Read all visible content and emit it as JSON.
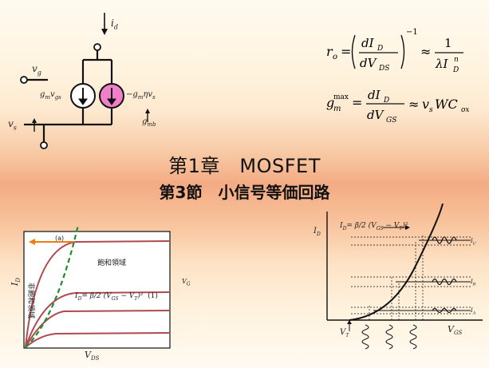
{
  "title": {
    "chapter": "第1章　MOSFET",
    "section": "第3節　小信号等価回路"
  },
  "equations": {
    "ro_lhs": "r",
    "ro_sub": "o",
    "ro_frac_num": "dI",
    "ro_frac_num_sub": "D",
    "ro_frac_den": "dV",
    "ro_frac_den_sub": "DS",
    "ro_exp": "−1",
    "ro_rhs_num": "1",
    "ro_rhs_den": "λI",
    "ro_rhs_den_sup": "n",
    "ro_rhs_den_sub": "D",
    "gm_lhs": "g",
    "gm_sub": "m",
    "gm_sup": "max",
    "gm_frac_num": "dI",
    "gm_frac_num_sub": "D",
    "gm_frac_den": "dV",
    "gm_frac_den_sub": "GS",
    "gm_rhs": "v",
    "gm_rhs_sub": "s",
    "gm_rhs2": "WC",
    "gm_rhs2_sub": "ox",
    "approx": "≈"
  },
  "circuit": {
    "id_label": "i",
    "id_sub": "d",
    "vg_label": "v",
    "vg_sub": "g",
    "vs_label": "v",
    "vs_sub": "s",
    "gm_vgs": "g",
    "gm_vgs_sub": "m",
    "gm_vgs_v": "v",
    "gm_vgs_vsub": "gs",
    "gmb_eq": "−g",
    "gmb_eq_sub": "m",
    "gmb_eq_rest": "ηv",
    "gmb_eq_rest_sub": "s",
    "gmb_label": "g",
    "gmb_label_sub": "mb"
  },
  "output_graph": {
    "ylabel": "I",
    "ylabel_sub": "D",
    "xlabel": "V",
    "xlabel_sub": "DS",
    "marker_a": "(a)",
    "saturation_label": "飽和領域",
    "nonsat_label": "非飽和領域",
    "eq_text": "I",
    "eq_sub": "D",
    "eq_rhs": "= β/2 (V",
    "eq_rhs_sub": "GS",
    "eq_rhs2": " − V",
    "eq_rhs2_sub": "T",
    "eq_rhs3": ")²",
    "eq_num": "(1)",
    "vg_side": "V",
    "vg_side_sub": "G"
  },
  "transfer_graph": {
    "ylabel": "I",
    "ylabel_sub": "D",
    "xlabel": "V",
    "xlabel_sub": "GS",
    "vt_label": "V",
    "vt_sub": "T",
    "eq_text": "I",
    "eq_sub": "D",
    "eq_rhs": "= β/2 (V",
    "eq_rhs_sub": "GS",
    "eq_rhs2": " − V",
    "eq_rhs2_sub": "T",
    "eq_rhs3": ")²",
    "ic_label": "I",
    "ic_sub": "C",
    "ib_label": "I",
    "ib_sub": "B",
    "ia_label": "I",
    "ia_sub": "A"
  },
  "colors": {
    "ordinary_curve": "#b04a50",
    "boundary_dash": "#1a8f2a",
    "arrow_orange": "#f07c10",
    "current_source_pink": "#f080c8"
  }
}
